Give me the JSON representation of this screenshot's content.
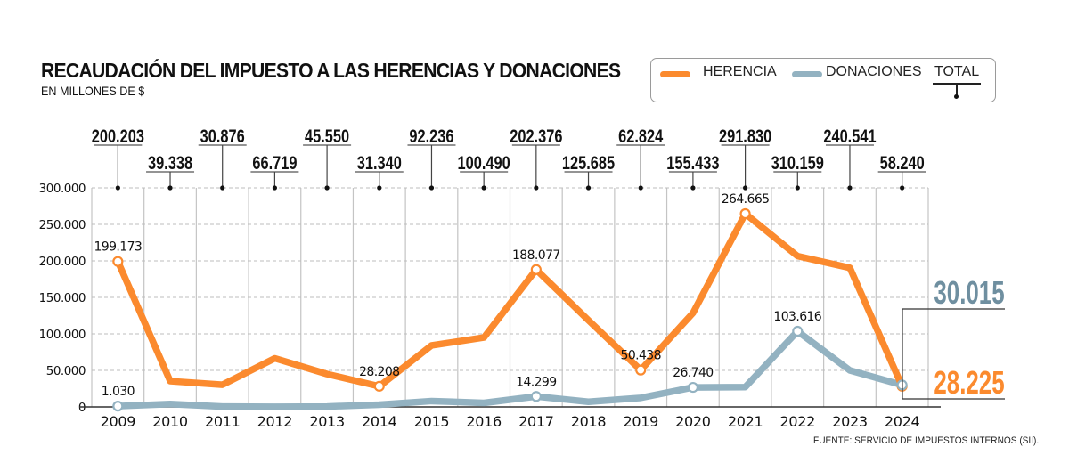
{
  "header": {
    "title": "RECAUDACIÓN DEL IMPUESTO A LAS HERENCIAS Y DONACIONES",
    "subtitle": "EN MILLONES DE $"
  },
  "legend": {
    "herencia": "HERENCIA",
    "donaciones": "DONACIONES",
    "total": "TOTAL"
  },
  "colors": {
    "herencia": "#fb8a2e",
    "donaciones": "#93b2c1",
    "total_text": "#111111",
    "donaciones_label": "#6f8fa0",
    "herencia_label": "#fb8a2e"
  },
  "source": "FUENTE: SERVICIO DE IMPUESTOS INTERNOS (SII).",
  "chart_data": {
    "type": "line",
    "title": "RECAUDACIÓN DEL IMPUESTO A LAS HERENCIAS Y DONACIONES",
    "subtitle": "EN MILLONES DE $",
    "xlabel": "",
    "ylabel": "",
    "x": [
      "2009",
      "2010",
      "2011",
      "2012",
      "2013",
      "2014",
      "2015",
      "2016",
      "2017",
      "2018",
      "2019",
      "2020",
      "2021",
      "2022",
      "2023",
      "2024"
    ],
    "ylim": [
      0,
      300000
    ],
    "yticks": [
      0,
      50000,
      100000,
      150000,
      200000,
      250000,
      300000
    ],
    "ytick_labels": [
      "0",
      "50.000",
      "100.000",
      "150.000",
      "200.000",
      "250.000",
      "300.000"
    ],
    "grid": true,
    "legend_position": "top-right",
    "series": [
      {
        "name": "HERENCIA",
        "values": [
          199173,
          35300,
          30400,
          66500,
          45000,
          28208,
          84200,
          95000,
          188077,
          118700,
          50438,
          128693,
          264665,
          206543,
          190500,
          28225
        ],
        "labels": {
          "0": "199.173",
          "5": "28.208",
          "8": "188.077",
          "10": "50.438",
          "12": "264.665"
        }
      },
      {
        "name": "DONACIONES",
        "values": [
          1030,
          4000,
          500,
          200,
          500,
          3100,
          8000,
          5500,
          14299,
          7000,
          12400,
          26740,
          27200,
          103616,
          50000,
          30015
        ],
        "labels": {
          "0": "1.030",
          "8": "14.299",
          "11": "26.740",
          "13": "103.616"
        }
      }
    ],
    "totals": [
      "200.203",
      "39.338",
      "30.876",
      "66.719",
      "45.550",
      "31.340",
      "92.236",
      "100.490",
      "202.376",
      "125.685",
      "62.824",
      "155.433",
      "291.830",
      "310.159",
      "240.541",
      "58.240"
    ],
    "end_labels": {
      "donaciones": "30.015",
      "herencia": "28.225"
    }
  }
}
